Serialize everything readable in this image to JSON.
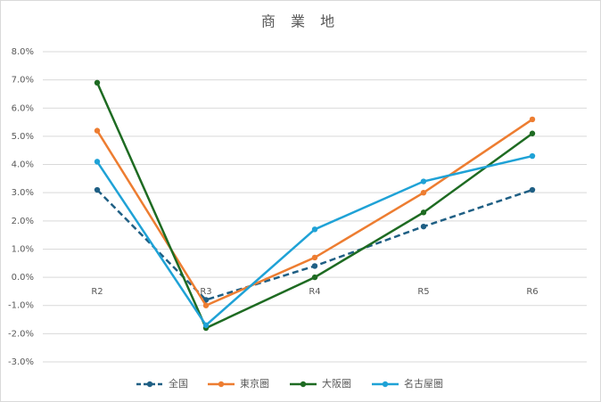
{
  "chart_data": {
    "type": "line",
    "title": "商 業 地",
    "categories": [
      "R2",
      "R3",
      "R4",
      "R5",
      "R6"
    ],
    "series": [
      {
        "name": "全国",
        "color": "#1f5f84",
        "dashed": true,
        "values": [
          3.1,
          -0.8,
          0.4,
          1.8,
          3.1
        ]
      },
      {
        "name": "東京圏",
        "color": "#ed7d31",
        "values": [
          5.2,
          -1.0,
          0.7,
          3.0,
          5.6
        ]
      },
      {
        "name": "大阪圏",
        "color": "#1e6b22",
        "values": [
          6.9,
          -1.8,
          0.0,
          2.3,
          5.1
        ]
      },
      {
        "name": "名古屋圏",
        "color": "#1fa2d6",
        "values": [
          4.1,
          -1.7,
          1.7,
          3.4,
          4.3
        ]
      }
    ],
    "ylim": [
      -3,
      8
    ],
    "yticks": [
      {
        "value": -3,
        "label": "-3.0%"
      },
      {
        "value": -2,
        "label": "-2.0%"
      },
      {
        "value": -1,
        "label": "-1.0%"
      },
      {
        "value": 0,
        "label": "0.0%"
      },
      {
        "value": 1,
        "label": "1.0%"
      },
      {
        "value": 2,
        "label": "2.0%"
      },
      {
        "value": 3,
        "label": "3.0%"
      },
      {
        "value": 4,
        "label": "4.0%"
      },
      {
        "value": 5,
        "label": "5.0%"
      },
      {
        "value": 6,
        "label": "6.0%"
      },
      {
        "value": 7,
        "label": "7.0%"
      },
      {
        "value": 8,
        "label": "8.0%"
      }
    ],
    "grid": true,
    "legend": "bottom"
  }
}
